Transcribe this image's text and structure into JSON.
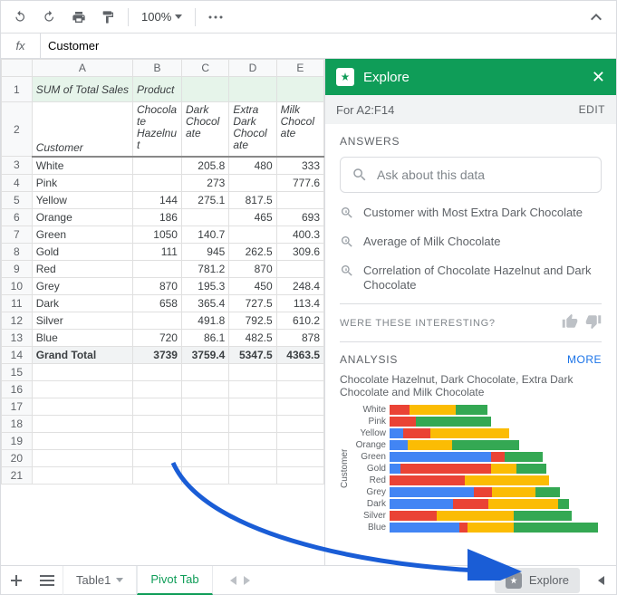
{
  "toolbar": {
    "zoom": "100%"
  },
  "formula": {
    "fx_label": "fx",
    "value": "Customer"
  },
  "sheet": {
    "columns": [
      "A",
      "B",
      "C",
      "D",
      "E"
    ],
    "header1": {
      "sum_of": "SUM of Total Sales",
      "product": "Product"
    },
    "header2": {
      "customer": "Customer",
      "cols": [
        "Chocolate Hazelnut",
        "Dark Chocolate",
        "Extra Dark Chocolate",
        "Milk Chocolate"
      ]
    },
    "rows": [
      {
        "n": 3,
        "label": "White",
        "v": [
          "",
          "205.8",
          "480",
          "333"
        ]
      },
      {
        "n": 4,
        "label": "Pink",
        "v": [
          "",
          "273",
          "",
          "777.6"
        ]
      },
      {
        "n": 5,
        "label": "Yellow",
        "v": [
          "144",
          "275.1",
          "817.5",
          ""
        ]
      },
      {
        "n": 6,
        "label": "Orange",
        "v": [
          "186",
          "",
          "465",
          "693"
        ]
      },
      {
        "n": 7,
        "label": "Green",
        "v": [
          "1050",
          "140.7",
          "",
          "400.3"
        ]
      },
      {
        "n": 8,
        "label": "Gold",
        "v": [
          "111",
          "945",
          "262.5",
          "309.6"
        ]
      },
      {
        "n": 9,
        "label": "Red",
        "v": [
          "",
          "781.2",
          "870",
          ""
        ]
      },
      {
        "n": 10,
        "label": "Grey",
        "v": [
          "870",
          "195.3",
          "450",
          "248.4"
        ]
      },
      {
        "n": 11,
        "label": "Dark",
        "v": [
          "658",
          "365.4",
          "727.5",
          "113.4"
        ]
      },
      {
        "n": 12,
        "label": "Silver",
        "v": [
          "",
          "491.8",
          "792.5",
          "610.2"
        ]
      },
      {
        "n": 13,
        "label": "Blue",
        "v": [
          "720",
          "86.1",
          "482.5",
          "878"
        ]
      }
    ],
    "total": {
      "n": 14,
      "label": "Grand Total",
      "v": [
        "3739",
        "3759.4",
        "5347.5",
        "4363.5"
      ]
    },
    "empty_rows": [
      15,
      16,
      17,
      18,
      19,
      20,
      21
    ]
  },
  "explore": {
    "title": "Explore",
    "range": "For A2:F14",
    "edit": "EDIT",
    "answers_label": "ANSWERS",
    "ask_placeholder": "Ask about this data",
    "suggestions": [
      "Customer with Most Extra Dark Chocolate",
      "Average of Milk Chocolate",
      "Correlation of Chocolate Hazelnut and Dark Chocolate"
    ],
    "interesting": "WERE THESE INTERESTING?",
    "analysis_label": "ANALYSIS",
    "more": "MORE",
    "chart_title": "Chocolate Hazelnut, Dark Chocolate, Extra Dark Chocolate and Milk Chocolate",
    "chart_ylabel": "Customer",
    "chart": {
      "colors": [
        "#4285f4",
        "#ea4335",
        "#fbbc04",
        "#34a853"
      ],
      "max": 2200,
      "rows": [
        {
          "label": "White",
          "v": [
            0,
            205.8,
            480,
            333
          ]
        },
        {
          "label": "Pink",
          "v": [
            0,
            273,
            0,
            777.6
          ]
        },
        {
          "label": "Yellow",
          "v": [
            144,
            275.1,
            817.5,
            0
          ]
        },
        {
          "label": "Orange",
          "v": [
            186,
            0,
            465,
            693
          ]
        },
        {
          "label": "Green",
          "v": [
            1050,
            140.7,
            0,
            400.3
          ]
        },
        {
          "label": "Gold",
          "v": [
            111,
            945,
            262.5,
            309.6
          ]
        },
        {
          "label": "Red",
          "v": [
            0,
            781.2,
            870,
            0
          ]
        },
        {
          "label": "Grey",
          "v": [
            870,
            195.3,
            450,
            248.4
          ]
        },
        {
          "label": "Dark",
          "v": [
            658,
            365.4,
            727.5,
            113.4
          ]
        },
        {
          "label": "Silver",
          "v": [
            0,
            491.8,
            792.5,
            610.2
          ]
        },
        {
          "label": "Blue",
          "v": [
            720,
            86.1,
            482.5,
            878
          ]
        }
      ]
    }
  },
  "tabs": {
    "tab1": "Table1",
    "tab2": "Pivot Tab",
    "explore_btn": "Explore"
  }
}
